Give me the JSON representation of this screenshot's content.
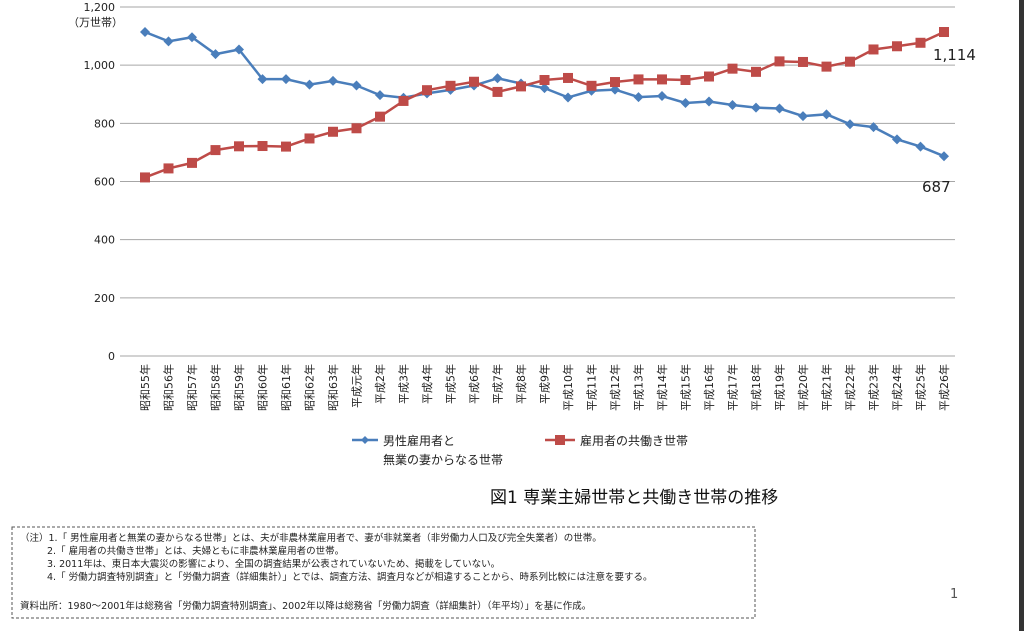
{
  "chart_data": {
    "type": "line",
    "title": "図1 専業主婦世帯と共働き世帯の推移",
    "ylabel": "（万世帯）",
    "ylim": [
      0,
      1200
    ],
    "yticks": [
      "0",
      "200",
      "400",
      "600",
      "800",
      "1,000",
      "1,200"
    ],
    "ytick_values": [
      0,
      200,
      400,
      600,
      800,
      1000,
      1200
    ],
    "grid": true,
    "legend_placement": "bottom",
    "categories": [
      "昭和55年",
      "昭和56年",
      "昭和57年",
      "昭和58年",
      "昭和59年",
      "昭和60年",
      "昭和61年",
      "昭和62年",
      "昭和63年",
      "平成元年",
      "平成2年",
      "平成3年",
      "平成4年",
      "平成5年",
      "平成6年",
      "平成7年",
      "平成8年",
      "平成9年",
      "平成10年",
      "平成11年",
      "平成12年",
      "平成13年",
      "平成14年",
      "平成15年",
      "平成16年",
      "平成17年",
      "平成18年",
      "平成19年",
      "平成20年",
      "平成21年",
      "平成22年",
      "平成23年",
      "平成24年",
      "平成25年",
      "平成26年"
    ],
    "series": [
      {
        "name": "男性雇用者と無業の妻からなる世帯",
        "legend_lines": [
          "男性雇用者と",
          "無業の妻からなる世帯"
        ],
        "color": "#4a7ebb",
        "marker": "diamond",
        "values": [
          1114,
          1082,
          1096,
          1038,
          1054,
          952,
          952,
          933,
          946,
          930,
          897,
          888,
          903,
          915,
          930,
          955,
          937,
          921,
          889,
          912,
          916,
          890,
          894,
          870,
          875,
          863,
          854,
          851,
          825,
          831,
          797,
          787,
          745,
          720,
          687
        ],
        "end_label": "687"
      },
      {
        "name": "雇用者の共働き世帯",
        "legend_lines": [
          "雇用者の共働き世帯"
        ],
        "color": "#be4b48",
        "marker": "square",
        "values": [
          614,
          645,
          664,
          708,
          721,
          722,
          720,
          748,
          771,
          783,
          823,
          877,
          914,
          929,
          943,
          908,
          927,
          949,
          956,
          929,
          942,
          951,
          951,
          949,
          961,
          988,
          977,
          1013,
          1011,
          995,
          1012,
          1054,
          1065,
          1077,
          1114
        ],
        "end_label": "1,114"
      }
    ]
  },
  "notes": [
    "（注）1.「 男性雇用者と無業の妻からなる世帯」とは、夫が非農林業雇用者で、妻が非就業者（非労働力人口及び完全失業者）の世帯。",
    "2.「 雇用者の共働き世帯」とは、夫婦ともに非農林業雇用者の世帯。",
    "3. 2011年は、東日本大震災の影響により、全国の調査結果が公表されていないため、掲載をしていない。",
    "4.「 労働力調査特別調査」と「労働力調査（詳細集計）」とでは、調査方法、調査月などが相違することから、時系列比較には注意を要する。"
  ],
  "source": "資料出所：1980～2001年は総務省「労働力調査特別調査」、2002年以降は総務省「労働力調査（詳細集計）（年平均）」を基に作成。",
  "page_number": "1"
}
